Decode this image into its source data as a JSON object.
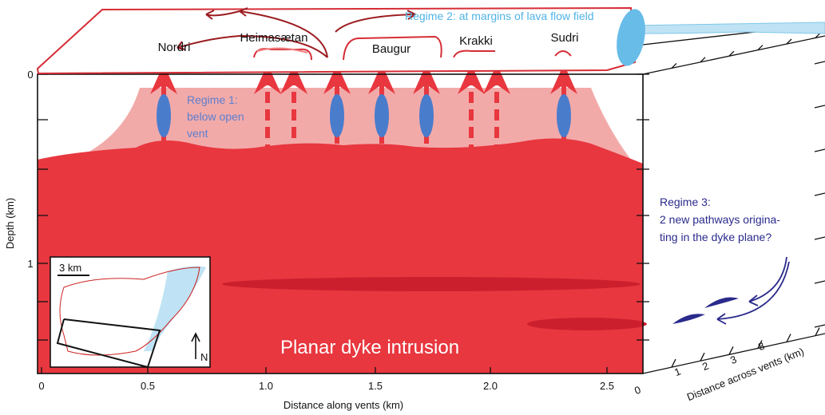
{
  "vents": [
    "Nordri",
    "Heimasætan",
    "Baugur",
    "Krakki",
    "Sudri"
  ],
  "regime_1": [
    "Regime 1:",
    "below open",
    "vent"
  ],
  "regime_2": "Regime 2: at margins of lava flow field",
  "regime_3": [
    "Regime 3:",
    "2 new pathways origina-",
    "ting in the dyke plane?"
  ],
  "intrusion_label": "Planar dyke intrusion",
  "inset": {
    "scale": "3 km",
    "north": "N"
  },
  "axes": {
    "y_label": "Depth (km)",
    "y_ticks": [
      "0",
      "1"
    ],
    "x_label": "Distance along vents (km)",
    "x_ticks": [
      "0",
      "0.5",
      "1.0",
      "1.5",
      "2.0",
      "2.5"
    ],
    "z_label": "Distance across vents (km)",
    "z_ticks": [
      "0",
      "1",
      "2",
      "3",
      "8"
    ]
  }
}
